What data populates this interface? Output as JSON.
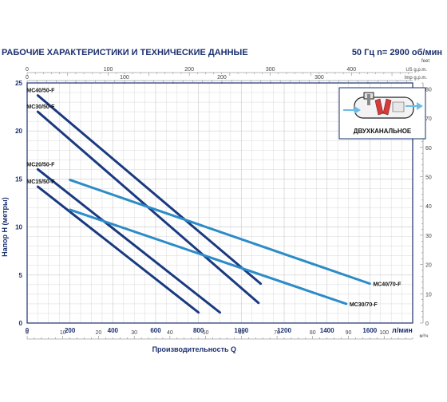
{
  "header": {
    "title": "РАБОЧИЕ ХАРАКТЕРИСТИКИ И ТЕХНИЧЕСКИЕ ДАННЫЕ",
    "spec": "50 Гц   n= 2900 об/мин"
  },
  "colors": {
    "curve_50": "#1a3a80",
    "curve_70": "#2c8cc8",
    "frame": "#1a2f6e",
    "grid": "#cfcfcf"
  },
  "inset": {
    "label": "ДВУХКАНАЛЬНОЕ",
    "icon": "double-channel-impeller-icon"
  },
  "chart_data": {
    "type": "line",
    "xlabel": "Производительность Q",
    "xunit": "л/мин",
    "ylabel": "Напор H (метры)",
    "xlim": [
      0,
      1800
    ],
    "ylim": [
      0,
      25
    ],
    "xticks": [
      0,
      200,
      400,
      600,
      800,
      1000,
      1200,
      1400,
      1600
    ],
    "yticks": [
      0,
      5,
      10,
      15,
      20,
      25
    ],
    "grid": true,
    "m3h_axis": {
      "unit": "м³/ч",
      "ticks": [
        0,
        10,
        20,
        30,
        40,
        50,
        60,
        70,
        80,
        90,
        100
      ]
    },
    "usgpm_axis": {
      "unit": "US g.p.m.",
      "ticks": [
        0,
        100,
        200,
        300,
        400
      ]
    },
    "impgpm_axis": {
      "unit": "Imp g.p.m.",
      "ticks": [
        0,
        100,
        200,
        300
      ]
    },
    "feet_axis": {
      "unit": "feet",
      "ticks": [
        0,
        10,
        20,
        30,
        40,
        50,
        60,
        70,
        80
      ]
    },
    "series": [
      {
        "name": "MC40/50-F",
        "group": "50",
        "points": [
          [
            50,
            23.7
          ],
          [
            1090,
            4.1
          ]
        ]
      },
      {
        "name": "MC30/50-F",
        "group": "50",
        "points": [
          [
            50,
            22.0
          ],
          [
            1080,
            2.1
          ]
        ]
      },
      {
        "name": "MC20/50-F",
        "group": "50",
        "points": [
          [
            50,
            16.0
          ],
          [
            900,
            1.1
          ]
        ]
      },
      {
        "name": "MC15/50-F",
        "group": "50",
        "points": [
          [
            50,
            14.2
          ],
          [
            800,
            1.1
          ]
        ]
      },
      {
        "name": "MC40/70-F",
        "group": "70",
        "points": [
          [
            200,
            14.9
          ],
          [
            1600,
            4.1
          ]
        ]
      },
      {
        "name": "MC30/70-F",
        "group": "70",
        "points": [
          [
            200,
            11.8
          ],
          [
            1490,
            2.0
          ]
        ]
      }
    ]
  }
}
